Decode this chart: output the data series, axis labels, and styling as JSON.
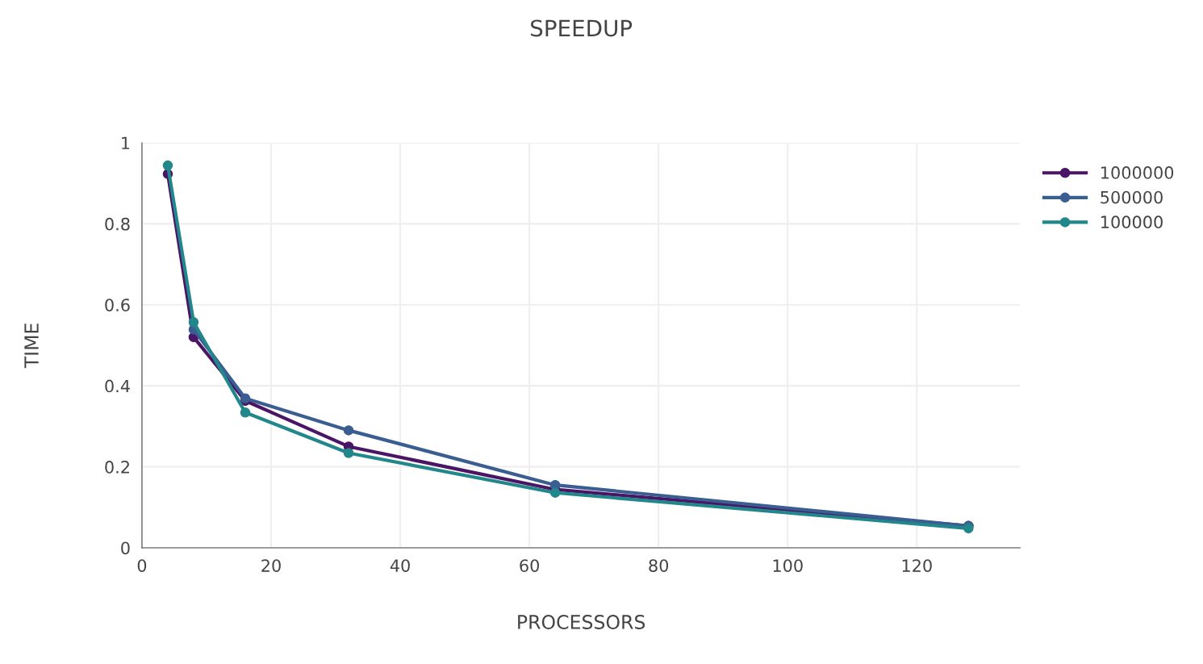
{
  "chart_data": {
    "type": "line",
    "title": "SPEEDUP",
    "xlabel": "PROCESSORS",
    "ylabel": "TIME",
    "x": [
      4,
      8,
      16,
      32,
      64,
      128
    ],
    "series": [
      {
        "name": "1000000",
        "color": "#4b1566",
        "values": [
          0.923,
          0.52,
          0.363,
          0.25,
          0.144,
          0.054
        ]
      },
      {
        "name": "500000",
        "color": "#3b5e92",
        "values": [
          null,
          0.539,
          0.369,
          0.29,
          0.155,
          0.054
        ]
      },
      {
        "name": "100000",
        "color": "#22878a",
        "values": [
          0.944,
          0.557,
          0.334,
          0.234,
          0.136,
          0.048
        ]
      }
    ],
    "xlim": [
      0,
      136
    ],
    "xticks": [
      0,
      20,
      40,
      60,
      80,
      100,
      120
    ],
    "ylim": [
      0,
      1
    ],
    "yticks": [
      0,
      0.2,
      0.4,
      0.6,
      0.8,
      1
    ],
    "grid": true,
    "legend": "top right",
    "marker": "circle",
    "line_style": "solid"
  }
}
